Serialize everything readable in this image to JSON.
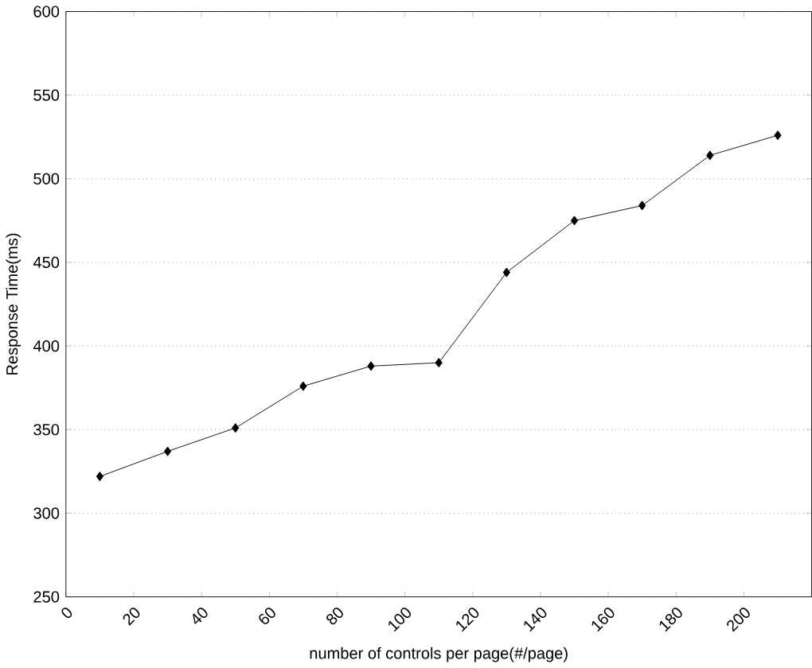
{
  "chart_data": {
    "type": "line",
    "xlabel": "number of controls per page(#/page)",
    "ylabel": "Response Time(ms)",
    "x": [
      10,
      30,
      50,
      70,
      90,
      110,
      130,
      150,
      170,
      190,
      210
    ],
    "series": [
      {
        "color": "#000000",
        "values": [
          322,
          337,
          351,
          376,
          388,
          390,
          444,
          475,
          484,
          514,
          526
        ]
      }
    ],
    "xlim": [
      0,
      220
    ],
    "xticks": [
      0,
      20,
      40,
      60,
      80,
      100,
      120,
      140,
      160,
      180,
      200
    ],
    "ylim": [
      250,
      600
    ],
    "yticks": [
      250,
      300,
      350,
      400,
      450,
      500,
      550,
      600
    ],
    "grid": "y",
    "marker": "diamond",
    "line_style": "solid"
  }
}
